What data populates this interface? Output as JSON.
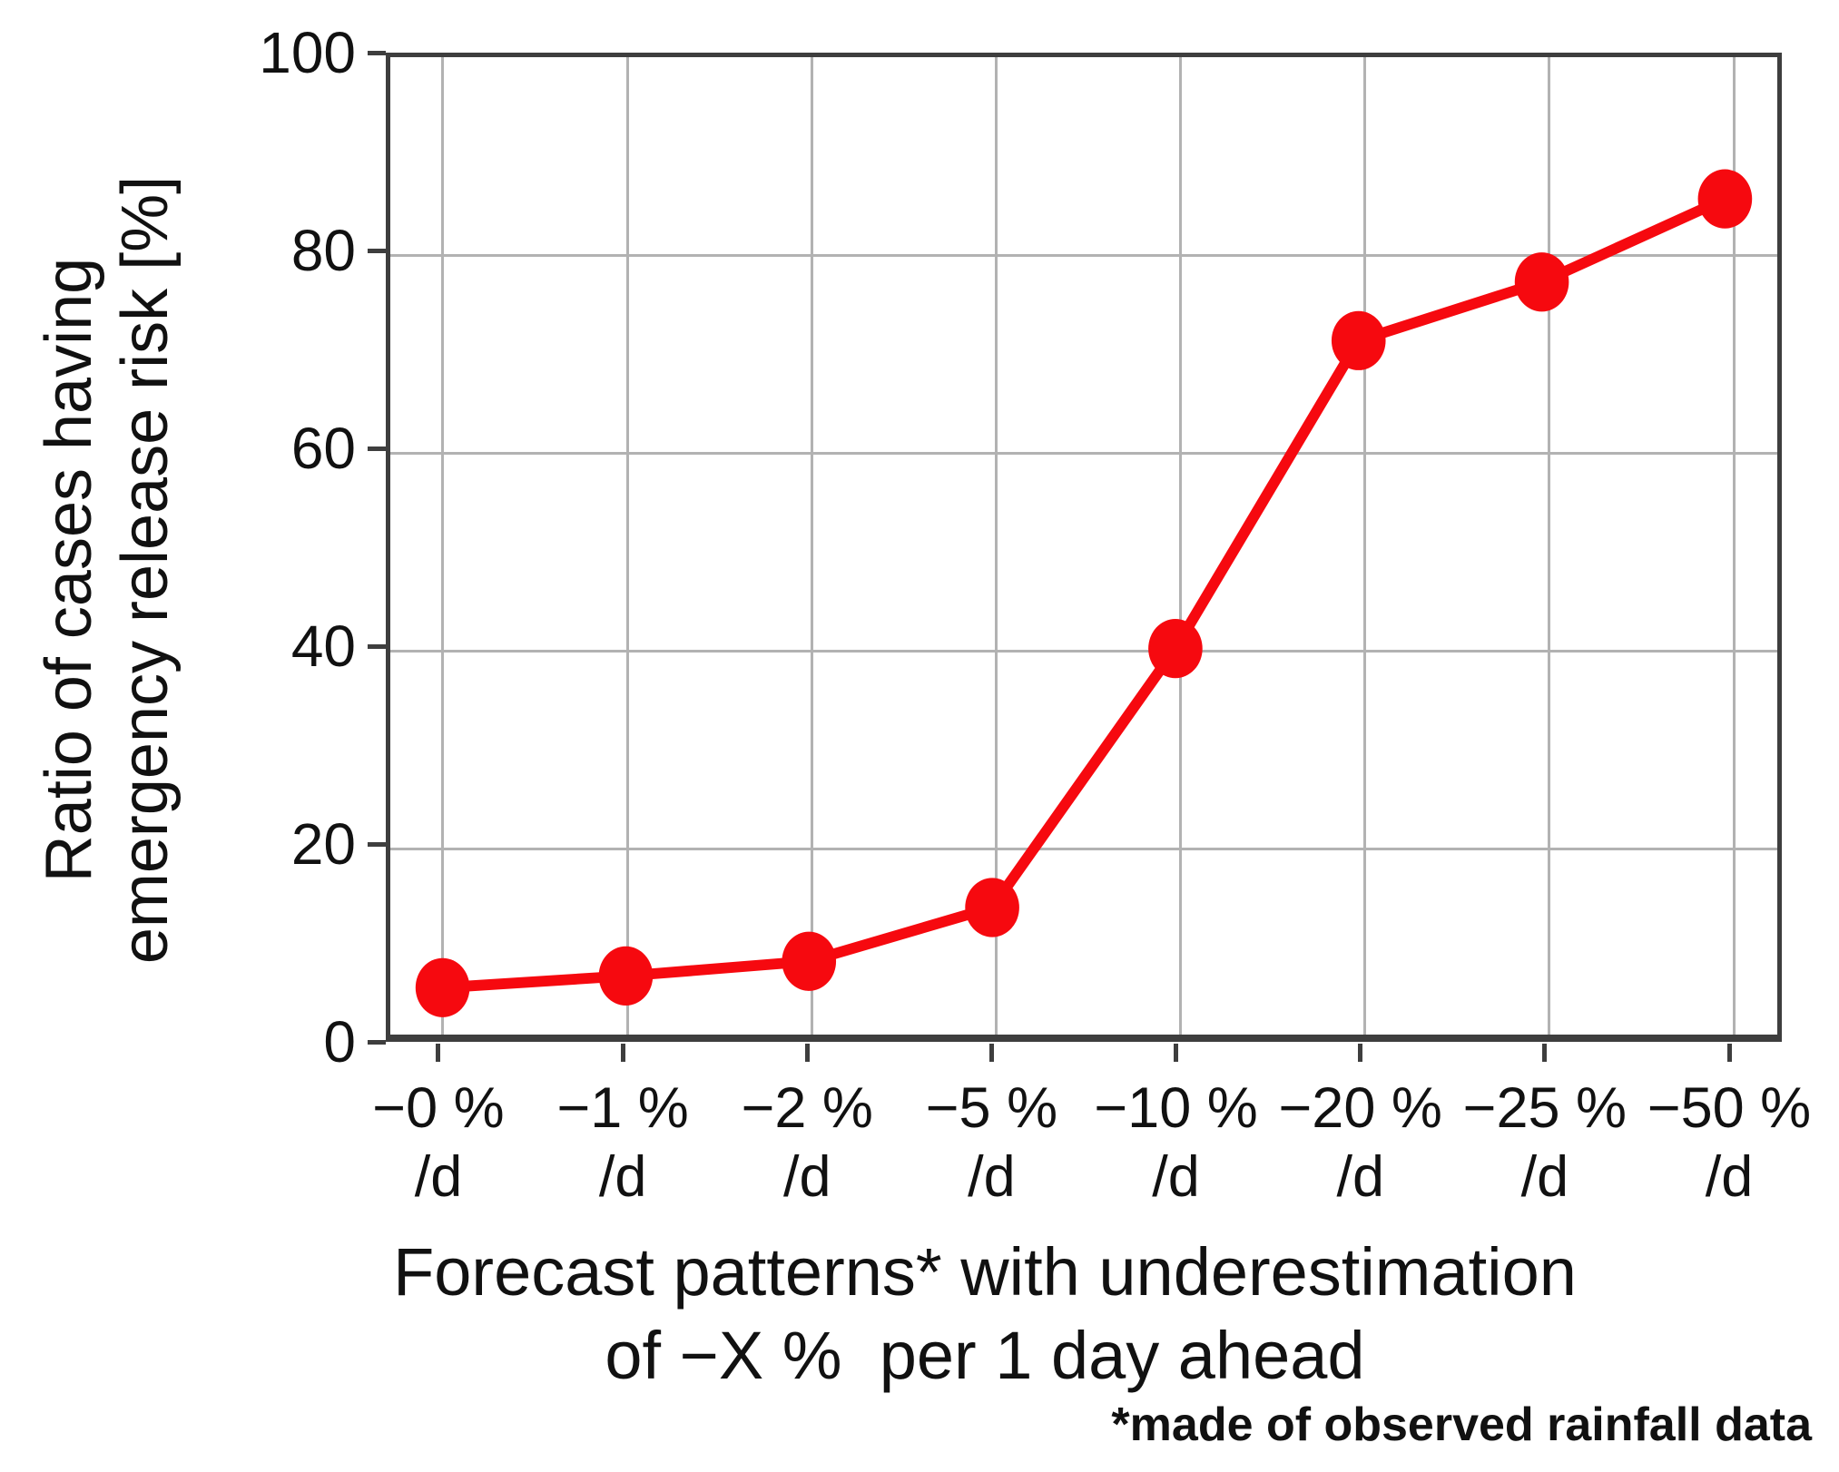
{
  "chart_data": {
    "type": "line",
    "title": "",
    "categories": [
      "−0 %/d",
      "−1 %/d",
      "−2 %/d",
      "−5 %/d",
      "−10 %/d",
      "−20 %/d",
      "−25 %/d",
      "−50 %/d"
    ],
    "category_labels": [
      {
        "value": "−0 %",
        "unit": "/d"
      },
      {
        "value": "−1 %",
        "unit": "/d"
      },
      {
        "value": "−2 %",
        "unit": "/d"
      },
      {
        "value": "−5 %",
        "unit": "/d"
      },
      {
        "value": "−10 %",
        "unit": "/d"
      },
      {
        "value": "−20 %",
        "unit": "/d"
      },
      {
        "value": "−25 %",
        "unit": "/d"
      },
      {
        "value": "−50 %",
        "unit": "/d"
      }
    ],
    "series": [
      {
        "name": "Ratio of cases having emergency release risk",
        "color": "#f6090f",
        "values": [
          4.8,
          6.0,
          7.5,
          13.0,
          39.5,
          71.0,
          77.0,
          85.5
        ]
      }
    ],
    "yticks": [
      0,
      20,
      40,
      60,
      80,
      100
    ],
    "ylim": [
      0,
      100
    ],
    "grid": true,
    "legend": "none",
    "marker": "circle",
    "ylabel_line1": "Ratio of cases having",
    "ylabel_line2": "emergency release risk [%]",
    "xlabel_line1": "Forecast patterns* with underestimation",
    "xlabel_line2": "of −X %  per 1 day ahead",
    "footnote": "*made of observed rainfall data"
  }
}
